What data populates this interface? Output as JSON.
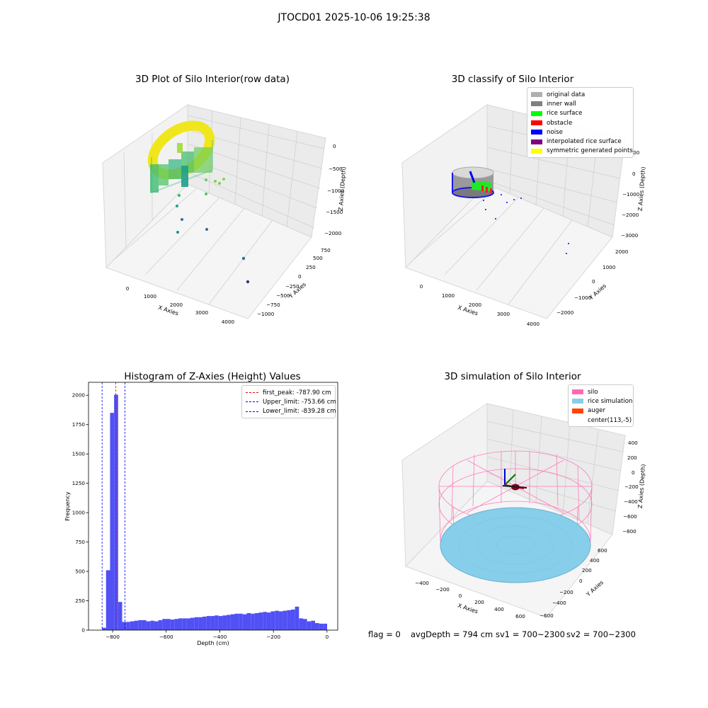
{
  "suptitle": "JTOCD01 2025-10-06 19:25:38",
  "status": {
    "flag": "flag = 0",
    "avg_depth": "avgDepth = 794 cm",
    "sv1": "sv1 = 700~2300",
    "sv2": "sv2 = 700~2300"
  },
  "colors": {
    "histogram_bar": "#5050f5",
    "first_peak_line": "#ff0000",
    "limit_lines": "#0000ff",
    "silo": "#ff69b4",
    "rice_simulation": "#87ceeb",
    "auger": "#ff4500"
  },
  "chart_data": [
    {
      "type": "scatter",
      "projection": "3d",
      "title": "3D Plot of Silo Interior(row data)",
      "xlabel": "X Axies",
      "ylabel": "Y Axies",
      "zlabel": "Z Axies (Depth)",
      "x_ticks": [
        "0",
        "1000",
        "2000",
        "3000",
        "4000"
      ],
      "y_ticks": [
        "−1000",
        "−750",
        "−500",
        "−250",
        "0",
        "250",
        "500",
        "750"
      ],
      "z_ticks": [
        "−2000",
        "−1500",
        "−1000",
        "−500",
        "0"
      ],
      "colormap": "viridis"
    },
    {
      "type": "scatter",
      "projection": "3d",
      "title": "3D classify of Silo Interior",
      "xlabel": "X Axies",
      "ylabel": "Y Axies",
      "zlabel": "Z Axies (Depth)",
      "x_ticks": [
        "0",
        "1000",
        "2000",
        "3000",
        "4000"
      ],
      "y_ticks": [
        "−2000",
        "−1000",
        "0",
        "1000",
        "2000"
      ],
      "z_ticks": [
        "−3000",
        "−2000",
        "−1000",
        "0",
        "1000"
      ],
      "legend": [
        {
          "label": "original data",
          "color": "#b0b0b0"
        },
        {
          "label": "inner wall",
          "color": "#808080"
        },
        {
          "label": "rice surface",
          "color": "#00ff00"
        },
        {
          "label": "obstacle",
          "color": "#ff0000"
        },
        {
          "label": "noise",
          "color": "#0000ff"
        },
        {
          "label": "interpolated rice surface",
          "color": "#800080"
        },
        {
          "label": "symmetric generated points",
          "color": "#ffff00"
        }
      ]
    },
    {
      "type": "bar",
      "subtype": "histogram",
      "title": "Histogram of Z-Axies (Height) Values",
      "xlabel": "Depth (cm)",
      "ylabel": "Frequency",
      "xlim": [
        -890,
        40
      ],
      "ylim": [
        0,
        2110
      ],
      "x_ticks": [
        -800,
        -600,
        -400,
        -200,
        0
      ],
      "y_ticks": [
        0,
        250,
        500,
        750,
        1000,
        1250,
        1500,
        1750,
        2000
      ],
      "bins": [
        {
          "start": -839.5,
          "end": -824.5,
          "value": 20
        },
        {
          "start": -824.5,
          "end": -809.5,
          "value": 510
        },
        {
          "start": -809.5,
          "end": -794.5,
          "value": 1850
        },
        {
          "start": -794.5,
          "end": -779.5,
          "value": 2005
        },
        {
          "start": -779.5,
          "end": -764.5,
          "value": 240
        },
        {
          "start": -764.5,
          "end": -749.5,
          "value": 70
        },
        {
          "start": -749.5,
          "end": -734.5,
          "value": 70
        },
        {
          "start": -734.5,
          "end": -719.5,
          "value": 75
        },
        {
          "start": -719.5,
          "end": -704.5,
          "value": 80
        },
        {
          "start": -704.5,
          "end": -689.5,
          "value": 85
        },
        {
          "start": -689.5,
          "end": -674.5,
          "value": 85
        },
        {
          "start": -674.5,
          "end": -659.5,
          "value": 75
        },
        {
          "start": -659.5,
          "end": -644.5,
          "value": 80
        },
        {
          "start": -644.5,
          "end": -629.5,
          "value": 75
        },
        {
          "start": -629.5,
          "end": -614.5,
          "value": 85
        },
        {
          "start": -614.5,
          "end": -599.5,
          "value": 95
        },
        {
          "start": -599.5,
          "end": -584.5,
          "value": 95
        },
        {
          "start": -584.5,
          "end": -569.5,
          "value": 90
        },
        {
          "start": -569.5,
          "end": -554.5,
          "value": 95
        },
        {
          "start": -554.5,
          "end": -539.5,
          "value": 100
        },
        {
          "start": -539.5,
          "end": -524.5,
          "value": 100
        },
        {
          "start": -524.5,
          "end": -509.5,
          "value": 100
        },
        {
          "start": -509.5,
          "end": -494.5,
          "value": 105
        },
        {
          "start": -494.5,
          "end": -479.5,
          "value": 110
        },
        {
          "start": -479.5,
          "end": -464.5,
          "value": 110
        },
        {
          "start": -464.5,
          "end": -449.5,
          "value": 115
        },
        {
          "start": -449.5,
          "end": -434.5,
          "value": 120
        },
        {
          "start": -434.5,
          "end": -419.5,
          "value": 120
        },
        {
          "start": -419.5,
          "end": -404.5,
          "value": 125
        },
        {
          "start": -404.5,
          "end": -389.5,
          "value": 120
        },
        {
          "start": -389.5,
          "end": -374.5,
          "value": 125
        },
        {
          "start": -374.5,
          "end": -359.5,
          "value": 130
        },
        {
          "start": -359.5,
          "end": -344.5,
          "value": 135
        },
        {
          "start": -344.5,
          "end": -329.5,
          "value": 140
        },
        {
          "start": -329.5,
          "end": -314.5,
          "value": 140
        },
        {
          "start": -314.5,
          "end": -299.5,
          "value": 135
        },
        {
          "start": -299.5,
          "end": -284.5,
          "value": 145
        },
        {
          "start": -284.5,
          "end": -269.5,
          "value": 140
        },
        {
          "start": -269.5,
          "end": -254.5,
          "value": 145
        },
        {
          "start": -254.5,
          "end": -239.5,
          "value": 150
        },
        {
          "start": -239.5,
          "end": -224.5,
          "value": 155
        },
        {
          "start": -224.5,
          "end": -209.5,
          "value": 150
        },
        {
          "start": -209.5,
          "end": -194.5,
          "value": 160
        },
        {
          "start": -194.5,
          "end": -179.5,
          "value": 165
        },
        {
          "start": -179.5,
          "end": -164.5,
          "value": 160
        },
        {
          "start": -164.5,
          "end": -149.5,
          "value": 165
        },
        {
          "start": -149.5,
          "end": -134.5,
          "value": 170
        },
        {
          "start": -134.5,
          "end": -119.5,
          "value": 175
        },
        {
          "start": -119.5,
          "end": -104.5,
          "value": 200
        },
        {
          "start": -104.5,
          "end": -89.5,
          "value": 100
        },
        {
          "start": -89.5,
          "end": -74.5,
          "value": 95
        },
        {
          "start": -74.5,
          "end": -59.5,
          "value": 75
        },
        {
          "start": -59.5,
          "end": -44.5,
          "value": 80
        },
        {
          "start": -44.5,
          "end": -29.5,
          "value": 60
        },
        {
          "start": -29.5,
          "end": -14.5,
          "value": 55
        },
        {
          "start": -14.5,
          "end": 0.5,
          "value": 55
        }
      ],
      "vlines": [
        {
          "label": "first_peak: -787.90 cm",
          "x": -787.9,
          "color": "#ff0000"
        },
        {
          "label": "Upper_limit: -753.66 cm",
          "x": -753.66,
          "color": "#0000ff"
        },
        {
          "label": "Lower_limit: -839.28 cm",
          "x": -839.28,
          "color": "#0000ff"
        }
      ],
      "legend_position": "upper-right"
    },
    {
      "type": "scatter",
      "projection": "3d",
      "title": "3D simulation of Silo Interior",
      "xlabel": "X Axies",
      "ylabel": "Y Axies",
      "zlabel": "Z Axies (Depth)",
      "x_ticks": [
        "−400",
        "−200",
        "0",
        "200",
        "400",
        "600"
      ],
      "y_ticks": [
        "−600",
        "−400",
        "−200",
        "0",
        "200",
        "400",
        "600"
      ],
      "z_ticks": [
        "−800",
        "−600",
        "−400",
        "−200",
        "0",
        "200",
        "400"
      ],
      "legend": [
        {
          "label": "silo",
          "color": "#ff69b4"
        },
        {
          "label": "rice simulation",
          "color": "#87ceeb"
        },
        {
          "label": "auger",
          "color": "#ff4500"
        },
        {
          "label": "center(113,-5)",
          "color": ""
        }
      ]
    }
  ]
}
